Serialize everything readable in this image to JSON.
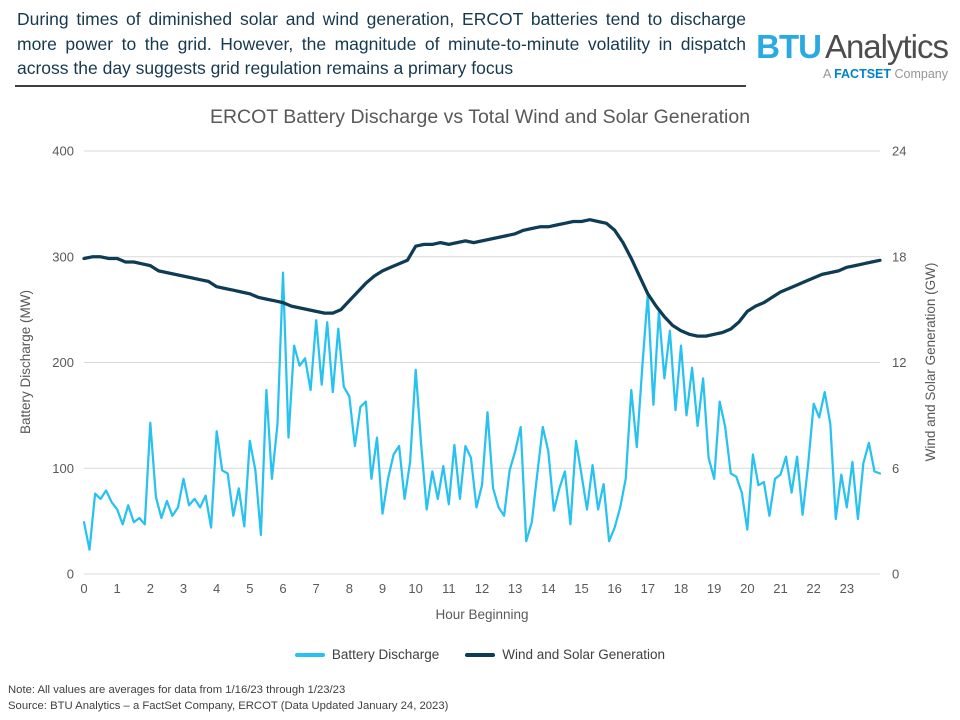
{
  "header": {
    "tagline": "During times of diminished solar and wind generation, ERCOT batteries tend to discharge more power to the grid. However, the magnitude of minute-to-minute volatility in dispatch across the day suggests grid regulation remains a primary focus",
    "logo": {
      "brand_primary": "BTU",
      "brand_secondary": "Analytics",
      "sub_prefix": "A ",
      "sub_brand": "FACTSET",
      "sub_suffix": " Company",
      "brand_primary_color": "#29abe2",
      "brand_secondary_color": "#4d4d4f",
      "sub_brand_color": "#0083ca"
    }
  },
  "chart_data": {
    "type": "line",
    "title": "ERCOT Battery Discharge vs Total Wind and Solar Generation",
    "xlabel": "Hour Beginning",
    "xlim": [
      0,
      24
    ],
    "x_ticks": [
      0,
      1,
      2,
      3,
      4,
      5,
      6,
      7,
      8,
      9,
      10,
      11,
      12,
      13,
      14,
      15,
      16,
      17,
      18,
      19,
      20,
      21,
      22,
      23
    ],
    "grid": "horizontal",
    "grid_color": "#d9d9d9",
    "legend_position": "bottom",
    "y_left": {
      "label": "Battery Discharge (MW)",
      "ticks": [
        0,
        100,
        200,
        300,
        400
      ],
      "lim": [
        0,
        400
      ]
    },
    "y_right": {
      "label": "Wind and Solar Generation (GW)",
      "ticks": [
        0,
        6,
        12,
        18,
        24
      ],
      "lim": [
        0,
        24
      ]
    },
    "series": [
      {
        "name": "Battery Discharge",
        "axis": "left",
        "unit": "MW",
        "color": "#28c2f0",
        "sample_interval_minutes": 10,
        "values": [
          49,
          23,
          76,
          71,
          79,
          68,
          61,
          47,
          65,
          49,
          53,
          47,
          143,
          73,
          53,
          69,
          55,
          63,
          90,
          65,
          71,
          63,
          74,
          44,
          135,
          98,
          95,
          55,
          81,
          45,
          126,
          98,
          37,
          174,
          90,
          142,
          285,
          129,
          216,
          197,
          204,
          174,
          240,
          179,
          238,
          172,
          232,
          177,
          168,
          121,
          158,
          163,
          90,
          129,
          57,
          90,
          113,
          121,
          71,
          106,
          193,
          122,
          61,
          97,
          71,
          102,
          66,
          122,
          71,
          121,
          110,
          63,
          84,
          153,
          81,
          63,
          55,
          98,
          116,
          139,
          31,
          49,
          95,
          139,
          116,
          60,
          81,
          97,
          47,
          126,
          94,
          61,
          103,
          61,
          85,
          31,
          44,
          63,
          90,
          174,
          120,
          196,
          265,
          160,
          248,
          185,
          230,
          155,
          216,
          150,
          195,
          140,
          185,
          110,
          90,
          163,
          139,
          95,
          92,
          77,
          42,
          113,
          84,
          87,
          55,
          90,
          94,
          111,
          77,
          111,
          56,
          103,
          161,
          148,
          172,
          142,
          52,
          94,
          63,
          106,
          52,
          105,
          124,
          97,
          95
        ]
      },
      {
        "name": "Wind and Solar Generation",
        "axis": "right",
        "unit": "GW",
        "color": "#0d3c54",
        "sample_interval_minutes": 15,
        "values": [
          17.9,
          18.0,
          18.0,
          17.9,
          17.9,
          17.7,
          17.7,
          17.6,
          17.5,
          17.2,
          17.1,
          17.0,
          16.9,
          16.8,
          16.7,
          16.6,
          16.3,
          16.2,
          16.1,
          16.0,
          15.9,
          15.7,
          15.6,
          15.5,
          15.4,
          15.2,
          15.1,
          15.0,
          14.9,
          14.8,
          14.8,
          15.0,
          15.5,
          16.0,
          16.5,
          16.9,
          17.2,
          17.4,
          17.6,
          17.8,
          18.6,
          18.7,
          18.7,
          18.8,
          18.7,
          18.8,
          18.9,
          18.8,
          18.9,
          19.0,
          19.1,
          19.2,
          19.3,
          19.5,
          19.6,
          19.7,
          19.7,
          19.8,
          19.9,
          20.0,
          20.0,
          20.1,
          20.0,
          19.9,
          19.5,
          18.8,
          17.9,
          16.9,
          15.9,
          15.2,
          14.6,
          14.1,
          13.8,
          13.6,
          13.5,
          13.5,
          13.6,
          13.7,
          13.9,
          14.3,
          14.9,
          15.2,
          15.4,
          15.7,
          16.0,
          16.2,
          16.4,
          16.6,
          16.8,
          17.0,
          17.1,
          17.2,
          17.4,
          17.5,
          17.6,
          17.7,
          17.8
        ]
      }
    ]
  },
  "footer": {
    "note": "Note:  All values are averages for data from 1/16/23 through 1/23/23",
    "source": "Source: BTU Analytics – a FactSet Company, ERCOT (Data Updated January 24, 2023)"
  }
}
